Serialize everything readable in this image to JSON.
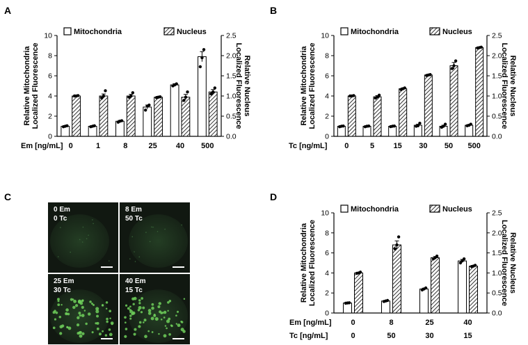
{
  "panels": {
    "A": {
      "letter": "A",
      "chart_data": {
        "type": "bar",
        "xlabel": "Em [ng/mL]",
        "categories": [
          "0",
          "1",
          "8",
          "25",
          "40",
          "500"
        ],
        "y_left": {
          "label_line1": "Relative Mitochondria",
          "label_line2": "Localized Fluorescence",
          "range": [
            0,
            10
          ],
          "ticks": [
            "0",
            "2",
            "4",
            "6",
            "8",
            "10"
          ]
        },
        "y_right": {
          "label_line1": "Relative Nucleus",
          "label_line2": "Localized Fluorescence",
          "range": [
            0,
            2.5
          ],
          "ticks": [
            "0.0",
            "0.5",
            "1.0",
            "1.5",
            "2.0",
            "2.5"
          ]
        },
        "series": [
          {
            "name": "Mitochondria",
            "pattern": "open",
            "axis": "left",
            "values": [
              1.0,
              1.0,
              1.5,
              2.9,
              5.1,
              7.9
            ],
            "err": [
              0.05,
              0.05,
              0.08,
              0.2,
              0.12,
              0.5
            ],
            "points": [
              [
                0.95,
                1.0,
                1.05
              ],
              [
                0.95,
                1.0,
                1.05
              ],
              [
                1.4,
                1.5,
                1.55
              ],
              [
                2.6,
                3.0,
                3.1
              ],
              [
                5.0,
                5.1,
                5.2
              ],
              [
                6.9,
                7.8,
                8.6
              ]
            ]
          },
          {
            "name": "Nucleus",
            "pattern": "hatched",
            "axis": "right",
            "values": [
              1.0,
              1.0,
              1.0,
              0.97,
              0.97,
              1.1
            ],
            "err": [
              0.02,
              0.05,
              0.04,
              0.02,
              0.07,
              0.06
            ],
            "points": [
              [
                1.0,
                1.0,
                1.01
              ],
              [
                0.95,
                1.0,
                1.13
              ],
              [
                0.97,
                1.0,
                1.08
              ],
              [
                0.96,
                0.97,
                0.98
              ],
              [
                0.89,
                0.97,
                1.1
              ],
              [
                1.05,
                1.1,
                1.2
              ]
            ]
          }
        ]
      }
    },
    "B": {
      "letter": "B",
      "chart_data": {
        "type": "bar",
        "xlabel": "Tc [ng/mL]",
        "categories": [
          "0",
          "5",
          "15",
          "30",
          "50",
          "500"
        ],
        "y_left": {
          "label_line1": "Relative Mitochondria",
          "label_line2": "Localized Fluorescence",
          "range": [
            0,
            10
          ],
          "ticks": [
            "0",
            "2",
            "4",
            "6",
            "8",
            "10"
          ]
        },
        "y_right": {
          "label_line1": "Relative Nucleus",
          "label_line2": "Localized Fluorescence",
          "range": [
            0,
            2.5
          ],
          "ticks": [
            "0.0",
            "0.5",
            "1.0",
            "1.5",
            "2.0",
            "2.5"
          ]
        },
        "series": [
          {
            "name": "Mitochondria",
            "pattern": "open",
            "axis": "left",
            "values": [
              1.0,
              1.0,
              1.0,
              1.1,
              1.0,
              1.1
            ],
            "err": [
              0.03,
              0.03,
              0.03,
              0.1,
              0.1,
              0.07
            ],
            "points": [
              [
                0.95,
                1.0,
                1.02
              ],
              [
                0.95,
                1.0,
                1.02
              ],
              [
                0.96,
                1.0,
                1.02
              ],
              [
                1.0,
                1.05,
                1.3
              ],
              [
                0.9,
                1.0,
                1.2
              ],
              [
                1.05,
                1.1,
                1.2
              ]
            ]
          },
          {
            "name": "Nucleus",
            "pattern": "hatched",
            "axis": "right",
            "values": [
              1.0,
              0.98,
              1.18,
              1.52,
              1.75,
              2.2
            ],
            "err": [
              0.01,
              0.03,
              0.02,
              0.01,
              0.08,
              0.01
            ],
            "points": [
              [
                1.0,
                1.0,
                1.01
              ],
              [
                0.95,
                0.98,
                1.02
              ],
              [
                1.16,
                1.18,
                1.2
              ],
              [
                1.51,
                1.52,
                1.53
              ],
              [
                1.68,
                1.75,
                1.87
              ],
              [
                2.19,
                2.2,
                2.21
              ]
            ]
          }
        ]
      }
    },
    "C": {
      "letter": "C",
      "images": [
        {
          "line1": "0 Em",
          "line2": "0 Tc"
        },
        {
          "line1": "8 Em",
          "line2": "50 Tc"
        },
        {
          "line1": "25 Em",
          "line2": "30 Tc"
        },
        {
          "line1": "40 Em",
          "line2": "15 Tc"
        }
      ]
    },
    "D": {
      "letter": "D",
      "chart_data": {
        "type": "bar",
        "xlabel": "Em [ng/mL]",
        "xlabel2": "Tc [ng/mL]",
        "categories": [
          "0",
          "8",
          "25",
          "40"
        ],
        "categories2": [
          "0",
          "50",
          "30",
          "15"
        ],
        "y_left": {
          "label_line1": "Relative Mitochondria",
          "label_line2": "Localized Fluorescence",
          "range": [
            0,
            10
          ],
          "ticks": [
            "0",
            "2",
            "4",
            "6",
            "8",
            "10"
          ]
        },
        "y_right": {
          "label_line1": "Relative Nucleus",
          "label_line2": "Localized Fluorescence",
          "range": [
            0,
            2.5
          ],
          "ticks": [
            "0.0",
            "0.5",
            "1.0",
            "1.5",
            "2.0",
            "2.5"
          ]
        },
        "series": [
          {
            "name": "Mitochondria",
            "pattern": "open",
            "axis": "left",
            "values": [
              1.0,
              1.2,
              2.4,
              5.2
            ],
            "err": [
              0.02,
              0.05,
              0.08,
              0.15
            ],
            "points": [
              [
                0.98,
                1.0,
                1.02
              ],
              [
                1.15,
                1.2,
                1.25
              ],
              [
                2.3,
                2.4,
                2.5
              ],
              [
                5.0,
                5.2,
                5.4
              ]
            ]
          },
          {
            "name": "Nucleus",
            "pattern": "hatched",
            "axis": "right",
            "values": [
              1.0,
              1.7,
              1.38,
              1.17
            ],
            "err": [
              0.01,
              0.1,
              0.03,
              0.01
            ],
            "points": [
              [
                0.99,
                1.0,
                1.02
              ],
              [
                1.6,
                1.7,
                1.9
              ],
              [
                1.35,
                1.38,
                1.42
              ],
              [
                1.16,
                1.17,
                1.19
              ]
            ]
          }
        ]
      }
    }
  }
}
